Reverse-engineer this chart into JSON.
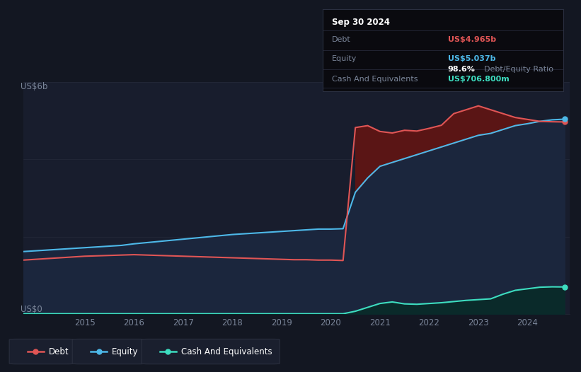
{
  "bg_color": "#131722",
  "plot_bg_color": "#181d2d",
  "debt_color": "#e05555",
  "equity_color": "#4db8e8",
  "cash_color": "#3dddc0",
  "debt_fill_color": "#5a1515",
  "equity_fill_color": "#1b263d",
  "cash_fill_color": "#0a2a2a",
  "grid_color": "#252b3a",
  "tick_color": "#7a8599",
  "ylabel_top": "US$6b",
  "ylabel_bottom": "US$0",
  "times": [
    2013.75,
    2014.0,
    2014.25,
    2014.5,
    2014.75,
    2015.0,
    2015.25,
    2015.5,
    2015.75,
    2016.0,
    2016.25,
    2016.5,
    2016.75,
    2017.0,
    2017.25,
    2017.5,
    2017.75,
    2018.0,
    2018.25,
    2018.5,
    2018.75,
    2019.0,
    2019.25,
    2019.5,
    2019.75,
    2020.0,
    2020.25,
    2020.5,
    2020.75,
    2021.0,
    2021.25,
    2021.5,
    2021.75,
    2022.0,
    2022.25,
    2022.5,
    2022.75,
    2023.0,
    2023.25,
    2023.5,
    2023.75,
    2024.0,
    2024.25,
    2024.5,
    2024.75
  ],
  "debt": [
    1.4,
    1.42,
    1.44,
    1.46,
    1.48,
    1.5,
    1.51,
    1.52,
    1.53,
    1.54,
    1.53,
    1.52,
    1.51,
    1.5,
    1.49,
    1.48,
    1.47,
    1.46,
    1.45,
    1.44,
    1.43,
    1.42,
    1.41,
    1.41,
    1.4,
    1.4,
    1.39,
    4.82,
    4.87,
    4.72,
    4.68,
    4.75,
    4.73,
    4.8,
    4.88,
    5.18,
    5.28,
    5.38,
    5.28,
    5.18,
    5.08,
    5.03,
    4.98,
    4.97,
    4.965
  ],
  "equity": [
    1.62,
    1.64,
    1.66,
    1.68,
    1.7,
    1.72,
    1.74,
    1.76,
    1.78,
    1.82,
    1.85,
    1.88,
    1.91,
    1.94,
    1.97,
    2.0,
    2.03,
    2.06,
    2.08,
    2.1,
    2.12,
    2.14,
    2.16,
    2.18,
    2.2,
    2.2,
    2.21,
    3.15,
    3.52,
    3.82,
    3.92,
    4.02,
    4.12,
    4.22,
    4.32,
    4.42,
    4.52,
    4.62,
    4.67,
    4.77,
    4.87,
    4.92,
    4.98,
    5.02,
    5.037
  ],
  "cash": [
    0.015,
    0.015,
    0.015,
    0.015,
    0.015,
    0.015,
    0.015,
    0.015,
    0.015,
    0.015,
    0.015,
    0.015,
    0.015,
    0.015,
    0.015,
    0.015,
    0.015,
    0.015,
    0.015,
    0.015,
    0.015,
    0.015,
    0.015,
    0.015,
    0.015,
    0.015,
    0.015,
    0.08,
    0.18,
    0.28,
    0.32,
    0.27,
    0.26,
    0.28,
    0.3,
    0.33,
    0.36,
    0.38,
    0.4,
    0.52,
    0.62,
    0.66,
    0.7,
    0.71,
    0.7068
  ],
  "ylim": [
    0,
    6.0
  ],
  "xlim": [
    2013.75,
    2024.85
  ],
  "xtick_positions": [
    2015,
    2016,
    2017,
    2018,
    2019,
    2020,
    2021,
    2022,
    2023,
    2024
  ],
  "info_title": "Sep 30 2024",
  "info_debt_label": "Debt",
  "info_debt_value": "US$4.965b",
  "info_equity_label": "Equity",
  "info_equity_value": "US$5.037b",
  "info_ratio_pct": "98.6%",
  "info_ratio_label": "Debt/Equity Ratio",
  "info_cash_label": "Cash And Equivalents",
  "info_cash_value": "US$706.800m",
  "debt_label_color": "#e05555",
  "equity_label_color": "#4db8e8",
  "cash_label_color": "#3dddc0",
  "info_box_bg": "#0a0a0f",
  "info_box_border": "#2a2f40",
  "legend_items": [
    "Debt",
    "Equity",
    "Cash And Equivalents"
  ]
}
